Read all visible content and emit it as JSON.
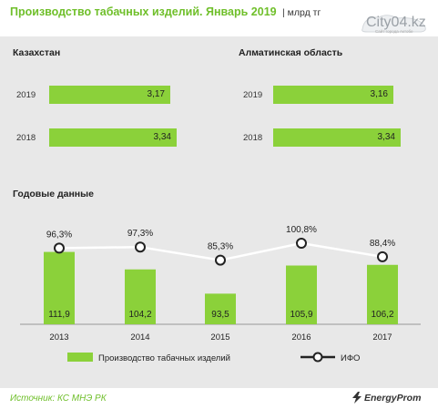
{
  "header": {
    "title": "Производство табачных изделий. Январь 2019",
    "unit": "млрд тг",
    "logo_text": "City04.kz",
    "logo_sub": "Сайт города Актобе"
  },
  "footer": {
    "source": "Источник: КС МНЭ РК",
    "brand": "EnergyProm"
  },
  "colors": {
    "bar": "#8bd13a",
    "line": "#ffffff",
    "title": "#6fbf2a"
  },
  "chart_data": [
    {
      "type": "bar",
      "orientation": "horizontal",
      "title": "Казахстан",
      "categories": [
        "2019",
        "2018"
      ],
      "values": [
        3.17,
        3.34
      ],
      "labels": [
        "3,17",
        "3,34"
      ]
    },
    {
      "type": "bar",
      "orientation": "horizontal",
      "title": "Алматинская  область",
      "categories": [
        "2019",
        "2018"
      ],
      "values": [
        3.16,
        3.34
      ],
      "labels": [
        "3,16",
        "3,34"
      ]
    },
    {
      "type": "bar+line",
      "title": "Годовые данные",
      "categories": [
        "2013",
        "2014",
        "2015",
        "2016",
        "2017"
      ],
      "series": [
        {
          "name": "Производство табачных изделий",
          "type": "bar",
          "values": [
            111.9,
            104.2,
            93.5,
            105.9,
            106.2
          ],
          "labels": [
            "111,9",
            "104,2",
            "93,5",
            "105,9",
            "106,2"
          ]
        },
        {
          "name": "ИФО",
          "type": "line",
          "values": [
            96.3,
            97.3,
            85.3,
            100.8,
            88.4
          ],
          "labels": [
            "96,3%",
            "97,3%",
            "85,3%",
            "100,8%",
            "88,4%"
          ]
        }
      ],
      "legend": "bottom"
    }
  ]
}
